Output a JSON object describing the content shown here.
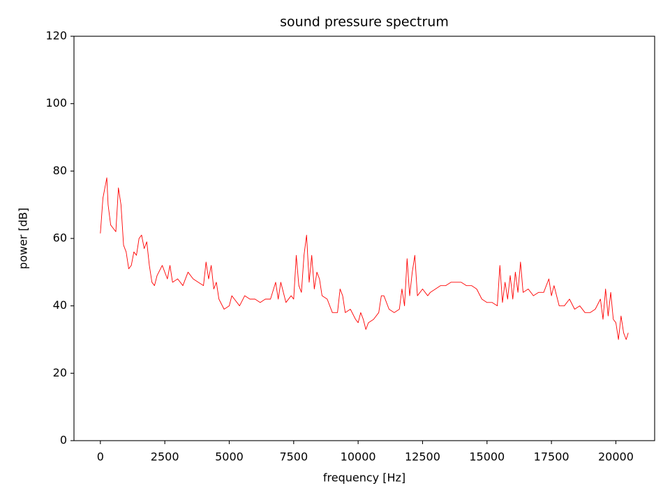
{
  "chart_data": {
    "type": "line",
    "title": "sound pressure spectrum",
    "x_label": "frequency [Hz]",
    "y_label": "power [dB]",
    "color": "#ff0000",
    "x": [
      0,
      100,
      200,
      250,
      300,
      400,
      500,
      600,
      700,
      800,
      900,
      1000,
      1100,
      1200,
      1300,
      1400,
      1500,
      1600,
      1700,
      1800,
      1900,
      2000,
      2100,
      2200,
      2400,
      2600,
      2700,
      2800,
      3000,
      3200,
      3400,
      3600,
      3800,
      4000,
      4100,
      4200,
      4300,
      4400,
      4500,
      4600,
      4800,
      5000,
      5100,
      5200,
      5400,
      5600,
      5800,
      6000,
      6200,
      6400,
      6600,
      6800,
      6900,
      7000,
      7200,
      7400,
      7500,
      7600,
      7700,
      7800,
      7900,
      8000,
      8100,
      8200,
      8300,
      8400,
      8500,
      8600,
      8800,
      9000,
      9200,
      9300,
      9400,
      9500,
      9700,
      9900,
      10000,
      10100,
      10200,
      10300,
      10400,
      10600,
      10800,
      10900,
      11000,
      11200,
      11400,
      11600,
      11700,
      11800,
      11900,
      12000,
      12100,
      12200,
      12300,
      12500,
      12700,
      12800,
      13000,
      13200,
      13400,
      13600,
      13800,
      14000,
      14200,
      14400,
      14600,
      14800,
      15000,
      15200,
      15400,
      15500,
      15600,
      15700,
      15800,
      15900,
      16000,
      16100,
      16200,
      16300,
      16400,
      16600,
      16800,
      17000,
      17200,
      17400,
      17500,
      17600,
      17800,
      18000,
      18200,
      18400,
      18600,
      18800,
      19000,
      19200,
      19400,
      19500,
      19600,
      19700,
      19800,
      19900,
      20000,
      20100,
      20200,
      20300,
      20400,
      20480
    ],
    "values": [
      61.5,
      72,
      76,
      78,
      70,
      64,
      63,
      62,
      75,
      70,
      58,
      56,
      51,
      52,
      56,
      55,
      60,
      61,
      57,
      59,
      52,
      47,
      46,
      49,
      52,
      48,
      52,
      47,
      48,
      46,
      50,
      48,
      47,
      46,
      53,
      48,
      52,
      45,
      47,
      42,
      39,
      40,
      43,
      42,
      40,
      43,
      42,
      42,
      41,
      42,
      42,
      47,
      42,
      47,
      41,
      43,
      42,
      55,
      46,
      44,
      55,
      61,
      47,
      55,
      45,
      50,
      48,
      43,
      42,
      38,
      38,
      45,
      43,
      38,
      39,
      36,
      35,
      38,
      36,
      33,
      35,
      36,
      38,
      43,
      43,
      39,
      38,
      39,
      45,
      40,
      54,
      43,
      50,
      55,
      43,
      45,
      43,
      44,
      45,
      46,
      46,
      47,
      47,
      47,
      46,
      46,
      45,
      42,
      41,
      41,
      40,
      52,
      41,
      47,
      42,
      49,
      42,
      50,
      44,
      53,
      44,
      45,
      43,
      44,
      44,
      48,
      43,
      46,
      40,
      40,
      42,
      39,
      40,
      38,
      38,
      39,
      42,
      36,
      45,
      37,
      44,
      36,
      35,
      30,
      37,
      32,
      30,
      32
    ],
    "xlim": [
      -1024,
      21504
    ],
    "ylim": [
      0,
      120
    ],
    "xticks": [
      0,
      2500,
      5000,
      7500,
      10000,
      12500,
      15000,
      17500,
      20000
    ],
    "yticks": [
      0,
      20,
      40,
      60,
      80,
      100,
      120
    ]
  }
}
